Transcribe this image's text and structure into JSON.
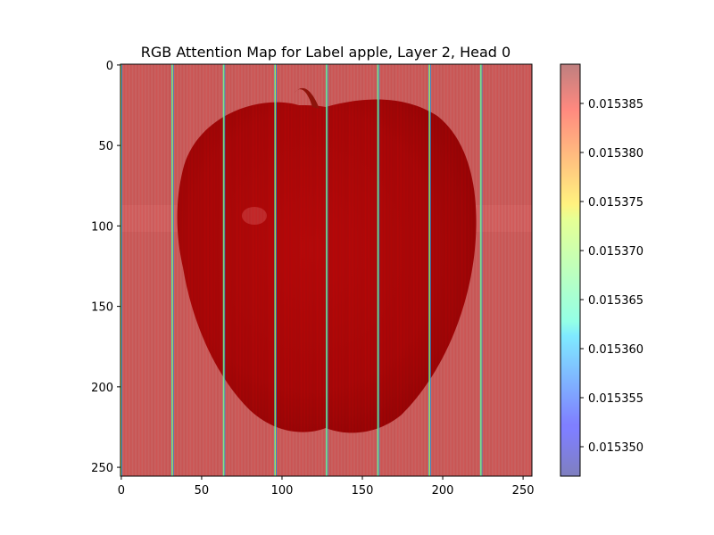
{
  "chart_data": {
    "type": "heatmap",
    "title": "RGB Attention Map for Label apple, Layer 2, Head 0",
    "xlabel": "",
    "ylabel": "",
    "xlim": [
      0,
      255
    ],
    "ylim": [
      255,
      0
    ],
    "x_ticks": [
      0,
      50,
      100,
      150,
      200,
      250
    ],
    "y_ticks": [
      0,
      50,
      100,
      150,
      200,
      250
    ],
    "x_tick_labels": [
      "0",
      "50",
      "100",
      "150",
      "200",
      "250"
    ],
    "y_tick_labels": [
      "0",
      "50",
      "100",
      "150",
      "200",
      "250"
    ],
    "background_image": "red apple photograph (semi-transparent underlay)",
    "attention_base_value": 0.015386,
    "attention_stripe_columns": [
      0,
      32,
      64,
      96,
      128,
      160,
      192,
      224
    ],
    "attention_stripe_value": 0.015372,
    "colorbar": {
      "colormap": "jet",
      "alpha": 0.5,
      "min": 0.015347,
      "max": 0.015389,
      "ticks": [
        0.01535,
        0.015355,
        0.01536,
        0.015365,
        0.01537,
        0.015375,
        0.01538,
        0.015385
      ],
      "tick_labels": [
        "0.015350",
        "0.015355",
        "0.015360",
        "0.015365",
        "0.015370",
        "0.015375",
        "0.015380",
        "0.015385"
      ]
    }
  }
}
